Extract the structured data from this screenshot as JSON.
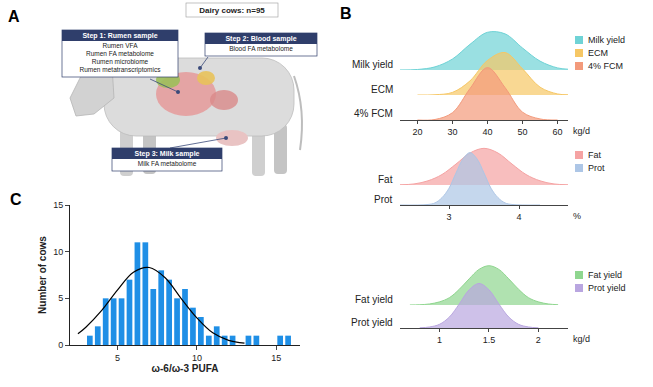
{
  "diagram": {
    "panel_label": "A",
    "title": "Dairy cows: n=95",
    "steps": [
      {
        "title": "Step 1: Rumen sample",
        "items": [
          "Rumen VFA",
          "Rumen FA metabolome",
          "Rumen microbiome",
          "Rumen metatranscriptomics"
        ]
      },
      {
        "title": "Step 2: Blood sample",
        "items": [
          "Blood FA metabolome"
        ]
      },
      {
        "title": "Step 3: Milk sample",
        "items": [
          "Milk FA metabolome"
        ]
      }
    ]
  },
  "chart_data": [
    {
      "type": "density",
      "panel_label": "B",
      "x_label": "kg/d",
      "xlim": [
        15,
        63
      ],
      "xticks": [
        20,
        30,
        40,
        50,
        60
      ],
      "ylim": [
        0,
        1.05
      ],
      "tick_labels": "x",
      "legend": "right",
      "series": [
        {
          "name": "Milk yield",
          "color": "#6fd3d6",
          "x": [
            15,
            20,
            25,
            30,
            35,
            40,
            45,
            50,
            55,
            60,
            63
          ],
          "values": [
            0.001,
            0.01,
            0.06,
            0.21,
            0.49,
            0.72,
            0.69,
            0.42,
            0.17,
            0.04,
            0.015
          ]
        },
        {
          "name": "ECM",
          "color": "#f6c765",
          "x": [
            20,
            25,
            30,
            35,
            40,
            45,
            50,
            55,
            60,
            63
          ],
          "values": [
            0,
            0.005,
            0.05,
            0.27,
            0.66,
            0.81,
            0.5,
            0.15,
            0.02,
            0.005
          ]
        },
        {
          "name": "4% FCM",
          "color": "#f39a7b",
          "x": [
            20,
            25,
            30,
            35,
            40,
            45,
            50,
            55,
            60
          ],
          "values": [
            0,
            0.01,
            0.14,
            0.6,
            1.0,
            0.62,
            0.15,
            0.02,
            0
          ]
        }
      ]
    },
    {
      "type": "density",
      "x_label": "%",
      "xlim": [
        2.3,
        4.7
      ],
      "xticks": [
        3,
        4
      ],
      "ylim": [
        0,
        1.05
      ],
      "tick_labels": "x",
      "legend": "right",
      "series": [
        {
          "name": "Fat",
          "color": "#f5a3a3",
          "x": [
            2.3,
            2.5,
            2.7,
            2.9,
            3.1,
            3.3,
            3.5,
            3.7,
            3.9,
            4.1,
            4.3,
            4.5,
            4.7
          ],
          "values": [
            0.005,
            0.02,
            0.08,
            0.2,
            0.4,
            0.61,
            0.7,
            0.61,
            0.4,
            0.2,
            0.08,
            0.02,
            0.005
          ]
        },
        {
          "name": "Prot",
          "color": "#adc6e6",
          "x": [
            2.3,
            2.7,
            2.8,
            2.9,
            3.0,
            3.1,
            3.2,
            3.3,
            3.4,
            3.5,
            3.6,
            3.7,
            3.8,
            3.9,
            4.3
          ],
          "values": [
            0,
            0.01,
            0.04,
            0.14,
            0.32,
            0.61,
            0.88,
            1.0,
            0.88,
            0.61,
            0.32,
            0.14,
            0.04,
            0.01,
            0
          ]
        }
      ]
    },
    {
      "type": "density",
      "x_label": "kg/d",
      "xlim": [
        0.6,
        2.3
      ],
      "xticks": [
        1,
        1.5,
        2
      ],
      "ylim": [
        0,
        1.05
      ],
      "tick_labels": "x",
      "legend": "right",
      "series": [
        {
          "name": "Fat yield",
          "color": "#8fd68f",
          "x": [
            0.7,
            0.8,
            0.9,
            1.0,
            1.1,
            1.2,
            1.3,
            1.4,
            1.5,
            1.6,
            1.7,
            1.8,
            1.9,
            2.0,
            2.1,
            2.2
          ],
          "values": [
            0.001,
            0.005,
            0.02,
            0.06,
            0.14,
            0.3,
            0.5,
            0.68,
            0.75,
            0.68,
            0.5,
            0.3,
            0.14,
            0.06,
            0.02,
            0.005
          ]
        },
        {
          "name": "Prot yield",
          "color": "#b9a6e0",
          "x": [
            0.8,
            0.9,
            1.0,
            1.1,
            1.2,
            1.3,
            1.4,
            1.5,
            1.6,
            1.7,
            1.8,
            1.9,
            2.0
          ],
          "values": [
            0.003,
            0.02,
            0.07,
            0.21,
            0.46,
            0.73,
            0.85,
            0.73,
            0.46,
            0.21,
            0.07,
            0.02,
            0.003
          ]
        }
      ]
    },
    {
      "type": "histogram",
      "panel_label": "C",
      "x_label": "ω-6/ω-3 PUFA",
      "y_label": "Number of cows",
      "xlim": [
        2,
        16.5
      ],
      "ylim": [
        0,
        15
      ],
      "xticks": [
        5,
        10,
        15
      ],
      "yticks": [
        0,
        5,
        10,
        15
      ],
      "bins": [
        3,
        3.5,
        4,
        4.5,
        5,
        5.5,
        6,
        6.5,
        7,
        7.5,
        8,
        8.5,
        9,
        9.5,
        10,
        10.5,
        11,
        11.5,
        12,
        12.5,
        13,
        13.5,
        14,
        14.5,
        15,
        15.5,
        16
      ],
      "values": [
        1,
        2,
        5,
        5,
        5,
        7,
        11,
        11,
        6,
        8,
        7,
        5,
        6,
        4,
        3,
        1,
        2,
        1,
        1,
        0,
        1,
        1,
        0,
        0,
        1,
        1
      ],
      "color": "#1f8fe6",
      "curve": {
        "x": [
          2.5,
          3,
          4,
          5,
          6,
          7,
          8,
          9,
          10,
          11,
          12,
          13
        ],
        "values": [
          1.2,
          1.9,
          3.7,
          5.9,
          7.8,
          8.3,
          7.2,
          5.0,
          2.9,
          1.3,
          0.5,
          0.2
        ],
        "color": "#000000"
      }
    }
  ]
}
